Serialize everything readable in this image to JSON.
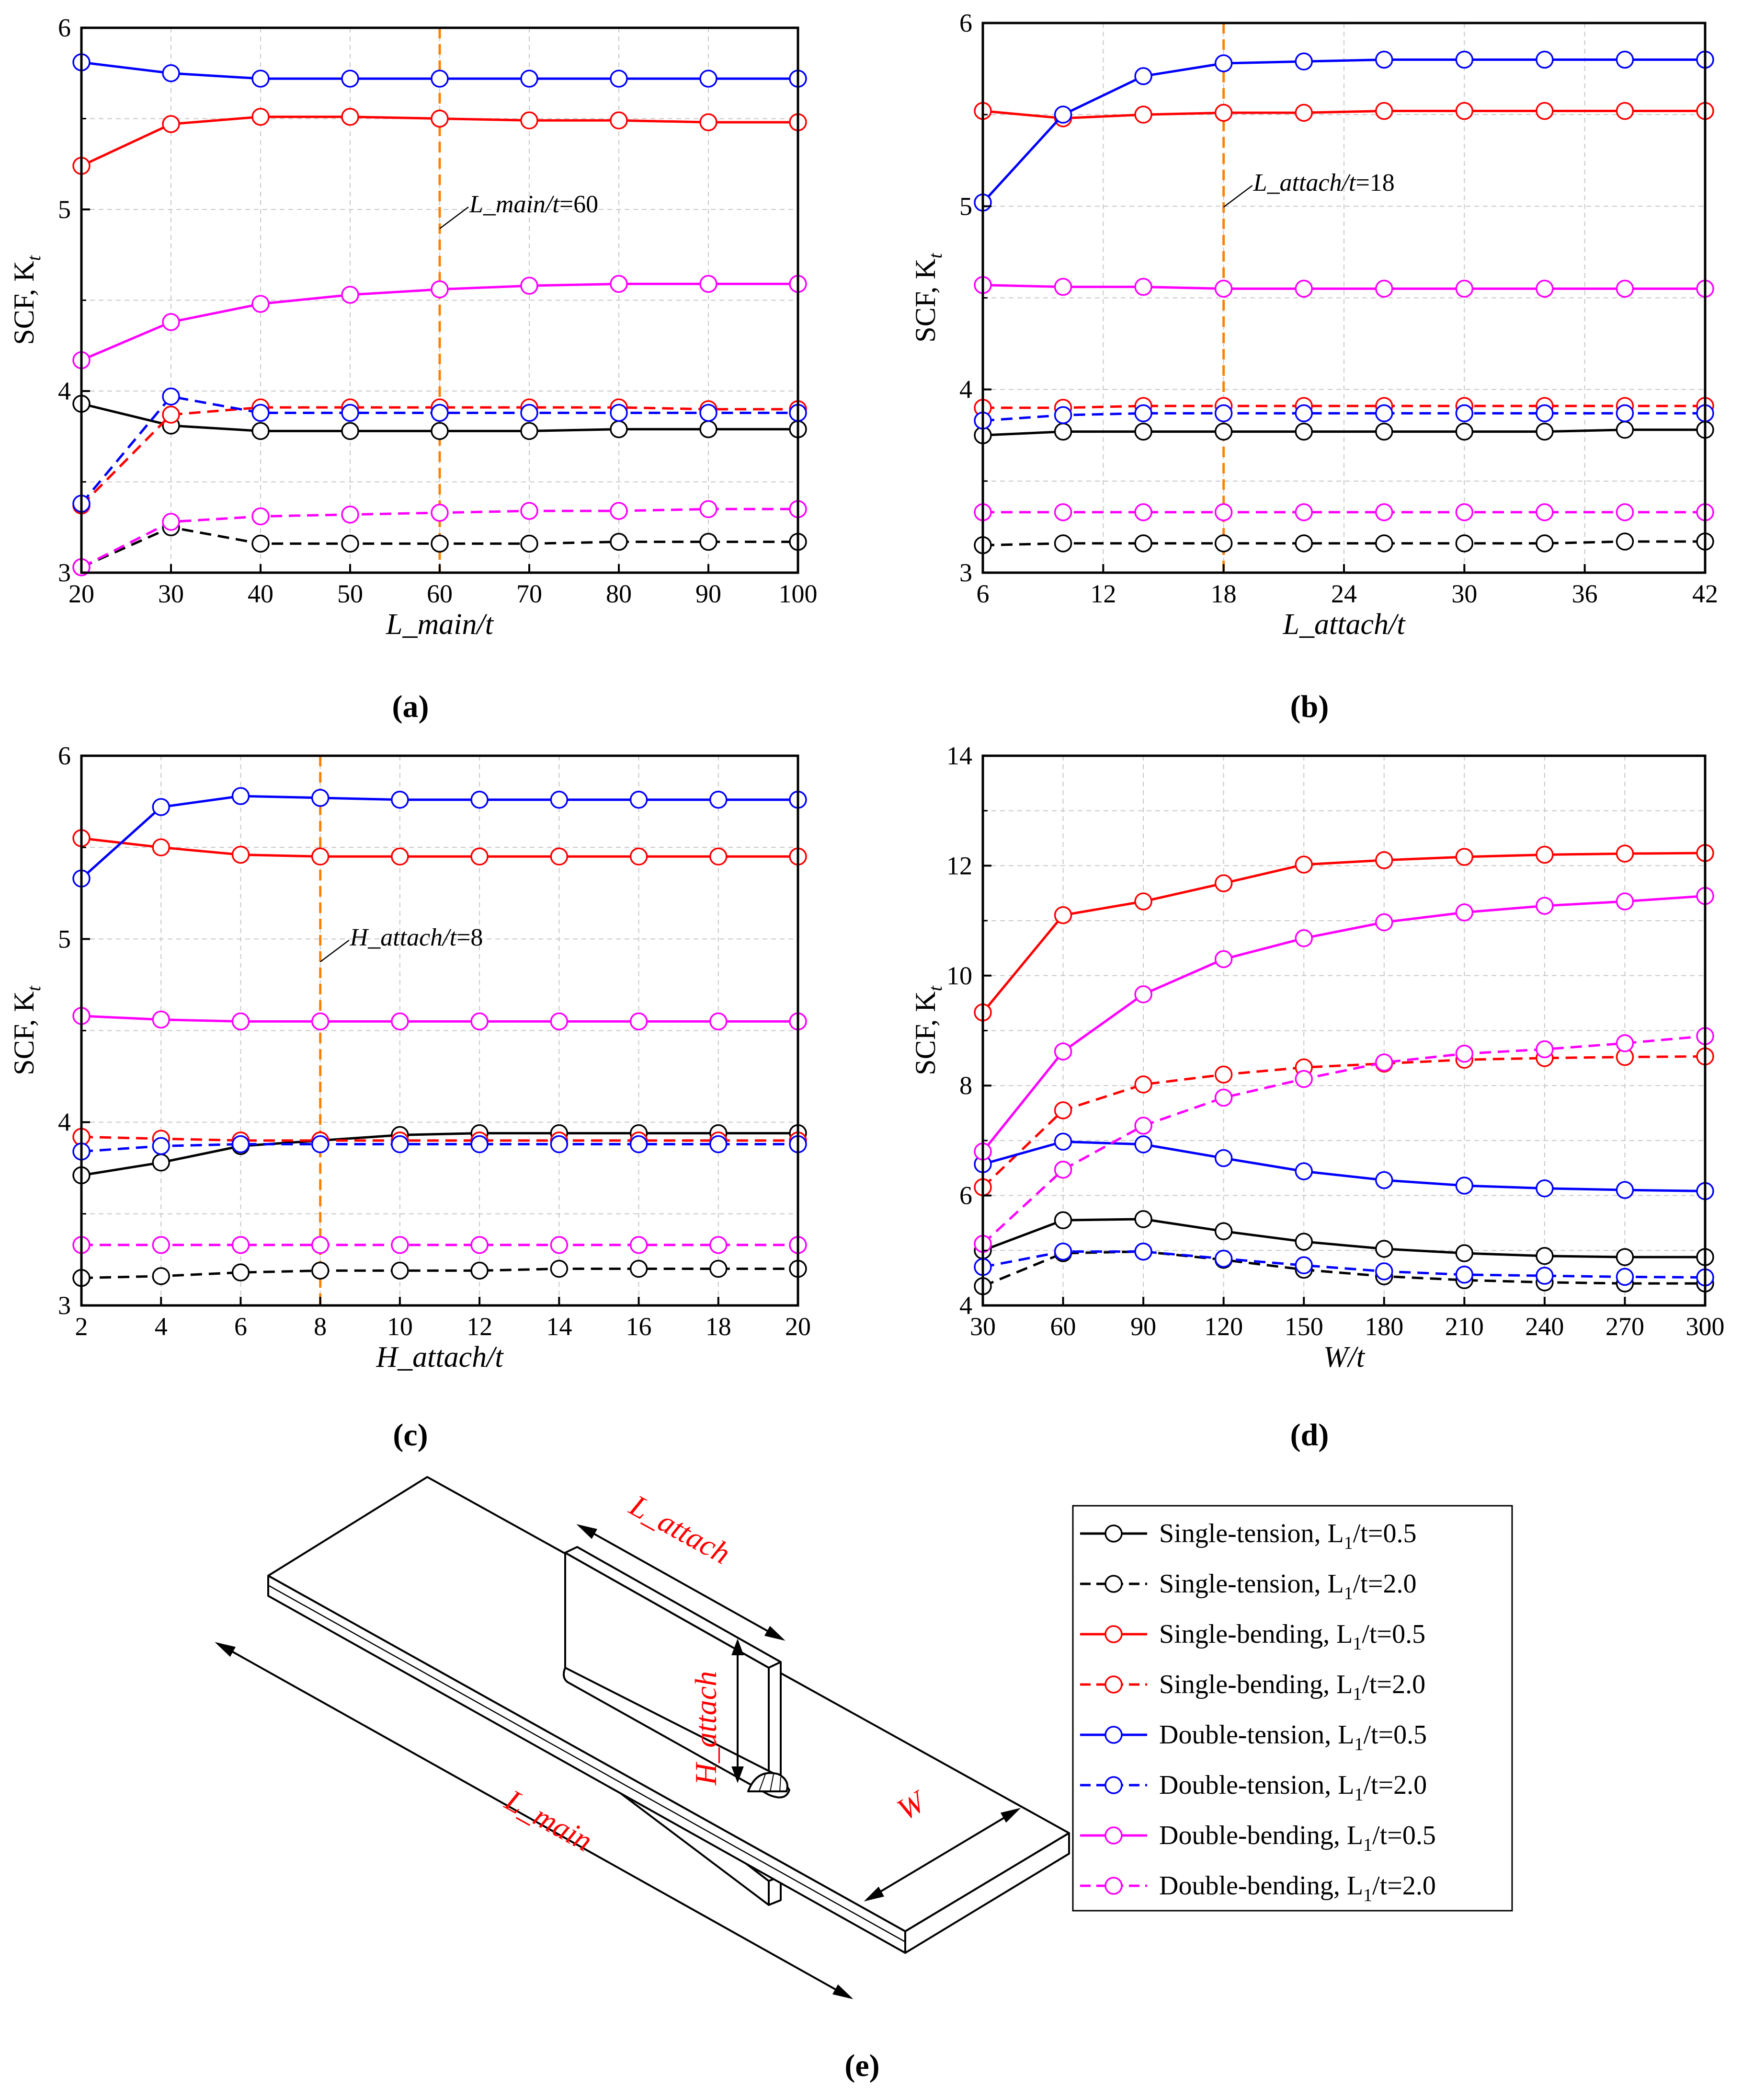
{
  "colors": {
    "single_tension": "#000000",
    "single_bending": "#ff0000",
    "double_tension": "#0000ff",
    "double_bending": "#ff00ff",
    "reference_line": "#ff8000",
    "dimension_label": "#ff0000"
  },
  "series_meta": [
    {
      "key": "st05",
      "color": "#000000",
      "dash": false
    },
    {
      "key": "st20",
      "color": "#000000",
      "dash": true
    },
    {
      "key": "sb05",
      "color": "#ff0000",
      "dash": false
    },
    {
      "key": "sb20",
      "color": "#ff0000",
      "dash": true
    },
    {
      "key": "dt05",
      "color": "#0000ff",
      "dash": false
    },
    {
      "key": "dt20",
      "color": "#0000ff",
      "dash": true
    },
    {
      "key": "db05",
      "color": "#ff00ff",
      "dash": false
    },
    {
      "key": "db20",
      "color": "#ff00ff",
      "dash": true
    }
  ],
  "chart_data": [
    {
      "id": "a",
      "type": "line",
      "panel_label": "(a)",
      "xlabel": "L_main/t",
      "ylabel": "SCF, K",
      "ylabel_sub": "t",
      "xlim": [
        20,
        100
      ],
      "ylim": [
        3,
        6
      ],
      "xticks": [
        20,
        30,
        40,
        50,
        60,
        70,
        80,
        90,
        100
      ],
      "yticks": [
        3,
        4,
        5,
        6
      ],
      "x": [
        20,
        30,
        40,
        50,
        60,
        70,
        80,
        90,
        100
      ],
      "reference": {
        "x": 60,
        "label": "L_main/t",
        "value": "=60",
        "label_y": 5.0
      },
      "series": [
        {
          "name": "Single-tension, L1/t=0.5",
          "values": [
            3.93,
            3.81,
            3.78,
            3.78,
            3.78,
            3.78,
            3.79,
            3.79,
            3.79
          ]
        },
        {
          "name": "Single-tension, L1/t=2.0",
          "values": [
            3.03,
            3.25,
            3.16,
            3.16,
            3.16,
            3.16,
            3.17,
            3.17,
            3.17
          ]
        },
        {
          "name": "Single-bending, L1/t=0.5",
          "values": [
            5.24,
            5.47,
            5.51,
            5.51,
            5.5,
            5.49,
            5.49,
            5.48,
            5.48
          ]
        },
        {
          "name": "Single-bending, L1/t=2.0",
          "values": [
            3.37,
            3.87,
            3.91,
            3.91,
            3.91,
            3.91,
            3.91,
            3.9,
            3.9
          ]
        },
        {
          "name": "Double-tension, L1/t=0.5",
          "values": [
            5.81,
            5.75,
            5.72,
            5.72,
            5.72,
            5.72,
            5.72,
            5.72,
            5.72
          ]
        },
        {
          "name": "Double-tension, L1/t=2.0",
          "values": [
            3.38,
            3.97,
            3.88,
            3.88,
            3.88,
            3.88,
            3.88,
            3.88,
            3.88
          ]
        },
        {
          "name": "Double-bending, L1/t=0.5",
          "values": [
            4.17,
            4.38,
            4.48,
            4.53,
            4.56,
            4.58,
            4.59,
            4.59,
            4.59
          ]
        },
        {
          "name": "Double-bending, L1/t=2.0",
          "values": [
            3.03,
            3.28,
            3.31,
            3.32,
            3.33,
            3.34,
            3.34,
            3.35,
            3.35
          ]
        }
      ]
    },
    {
      "id": "b",
      "type": "line",
      "panel_label": "(b)",
      "xlabel": "L_attach/t",
      "ylabel": "SCF, K",
      "ylabel_sub": "t",
      "xlim": [
        6,
        42
      ],
      "ylim": [
        3,
        6
      ],
      "xticks": [
        6,
        12,
        18,
        24,
        30,
        36,
        42
      ],
      "yticks": [
        3,
        4,
        5,
        6
      ],
      "x": [
        6,
        10,
        14,
        18,
        22,
        26,
        30,
        34,
        38,
        42
      ],
      "reference": {
        "x": 18,
        "label": "L_attach/t",
        "value": "=18",
        "label_y": 5.1
      },
      "series": [
        {
          "name": "Single-tension, L1/t=0.5",
          "values": [
            3.75,
            3.77,
            3.77,
            3.77,
            3.77,
            3.77,
            3.77,
            3.77,
            3.78,
            3.78
          ]
        },
        {
          "name": "Single-tension, L1/t=2.0",
          "values": [
            3.15,
            3.16,
            3.16,
            3.16,
            3.16,
            3.16,
            3.16,
            3.16,
            3.17,
            3.17
          ]
        },
        {
          "name": "Single-bending, L1/t=0.5",
          "values": [
            5.52,
            5.48,
            5.5,
            5.51,
            5.51,
            5.52,
            5.52,
            5.52,
            5.52,
            5.52
          ]
        },
        {
          "name": "Single-bending, L1/t=2.0",
          "values": [
            3.9,
            3.9,
            3.91,
            3.91,
            3.91,
            3.91,
            3.91,
            3.91,
            3.91,
            3.91
          ]
        },
        {
          "name": "Double-tension, L1/t=0.5",
          "values": [
            5.02,
            5.5,
            5.71,
            5.78,
            5.79,
            5.8,
            5.8,
            5.8,
            5.8,
            5.8
          ]
        },
        {
          "name": "Double-tension, L1/t=2.0",
          "values": [
            3.83,
            3.86,
            3.87,
            3.87,
            3.87,
            3.87,
            3.87,
            3.87,
            3.87,
            3.87
          ]
        },
        {
          "name": "Double-bending, L1/t=0.5",
          "values": [
            4.57,
            4.56,
            4.56,
            4.55,
            4.55,
            4.55,
            4.55,
            4.55,
            4.55,
            4.55
          ]
        },
        {
          "name": "Double-bending, L1/t=2.0",
          "values": [
            3.33,
            3.33,
            3.33,
            3.33,
            3.33,
            3.33,
            3.33,
            3.33,
            3.33,
            3.33
          ]
        }
      ]
    },
    {
      "id": "c",
      "type": "line",
      "panel_label": "(c)",
      "xlabel": "H_attach/t",
      "ylabel": "SCF, K",
      "ylabel_sub": "t",
      "xlim": [
        2,
        20
      ],
      "ylim": [
        3,
        6
      ],
      "xticks": [
        2,
        4,
        6,
        8,
        10,
        12,
        14,
        16,
        18,
        20
      ],
      "yticks": [
        3,
        4,
        5,
        6
      ],
      "x": [
        2,
        4,
        6,
        8,
        10,
        12,
        14,
        16,
        18,
        20
      ],
      "reference": {
        "x": 8,
        "label": "H_attach/t",
        "value": "=8",
        "label_y": 4.98
      },
      "series": [
        {
          "name": "Single-tension, L1/t=0.5",
          "values": [
            3.71,
            3.78,
            3.87,
            3.9,
            3.93,
            3.94,
            3.94,
            3.94,
            3.94,
            3.94
          ]
        },
        {
          "name": "Single-tension, L1/t=2.0",
          "values": [
            3.15,
            3.16,
            3.18,
            3.19,
            3.19,
            3.19,
            3.2,
            3.2,
            3.2,
            3.2
          ]
        },
        {
          "name": "Single-bending, L1/t=0.5",
          "values": [
            5.55,
            5.5,
            5.46,
            5.45,
            5.45,
            5.45,
            5.45,
            5.45,
            5.45,
            5.45
          ]
        },
        {
          "name": "Single-bending, L1/t=2.0",
          "values": [
            3.92,
            3.91,
            3.9,
            3.9,
            3.9,
            3.9,
            3.9,
            3.9,
            3.9,
            3.9
          ]
        },
        {
          "name": "Double-tension, L1/t=0.5",
          "values": [
            5.33,
            5.72,
            5.78,
            5.77,
            5.76,
            5.76,
            5.76,
            5.76,
            5.76,
            5.76
          ]
        },
        {
          "name": "Double-tension, L1/t=2.0",
          "values": [
            3.84,
            3.87,
            3.88,
            3.88,
            3.88,
            3.88,
            3.88,
            3.88,
            3.88,
            3.88
          ]
        },
        {
          "name": "Double-bending, L1/t=0.5",
          "values": [
            4.58,
            4.56,
            4.55,
            4.55,
            4.55,
            4.55,
            4.55,
            4.55,
            4.55,
            4.55
          ]
        },
        {
          "name": "Double-bending, L1/t=2.0",
          "values": [
            3.33,
            3.33,
            3.33,
            3.33,
            3.33,
            3.33,
            3.33,
            3.33,
            3.33,
            3.33
          ]
        }
      ]
    },
    {
      "id": "d",
      "type": "line",
      "panel_label": "(d)",
      "xlabel": "W/t",
      "ylabel": "SCF, K",
      "ylabel_sub": "t",
      "xlim": [
        30,
        300
      ],
      "ylim": [
        4,
        14
      ],
      "xticks": [
        30,
        60,
        90,
        120,
        150,
        180,
        210,
        240,
        270,
        300
      ],
      "yticks": [
        4,
        6,
        8,
        10,
        12,
        14
      ],
      "x": [
        30,
        60,
        90,
        120,
        150,
        180,
        210,
        240,
        270,
        300
      ],
      "series": [
        {
          "name": "Single-tension, L1/t=0.5",
          "values": [
            5.0,
            5.55,
            5.57,
            5.35,
            5.16,
            5.03,
            4.95,
            4.9,
            4.88,
            4.88
          ]
        },
        {
          "name": "Single-tension, L1/t=2.0",
          "values": [
            4.35,
            4.95,
            4.98,
            4.83,
            4.65,
            4.53,
            4.46,
            4.42,
            4.4,
            4.4
          ]
        },
        {
          "name": "Single-bending, L1/t=0.5",
          "values": [
            9.33,
            11.1,
            11.35,
            11.68,
            12.02,
            12.1,
            12.16,
            12.2,
            12.22,
            12.23
          ]
        },
        {
          "name": "Single-bending, L1/t=2.0",
          "values": [
            6.15,
            7.55,
            8.02,
            8.2,
            8.33,
            8.4,
            8.47,
            8.5,
            8.52,
            8.53
          ]
        },
        {
          "name": "Double-tension, L1/t=0.5",
          "values": [
            6.57,
            6.98,
            6.93,
            6.68,
            6.44,
            6.28,
            6.18,
            6.13,
            6.1,
            6.08
          ]
        },
        {
          "name": "Double-tension, L1/t=2.0",
          "values": [
            4.7,
            4.98,
            4.98,
            4.85,
            4.73,
            4.62,
            4.56,
            4.54,
            4.52,
            4.51
          ]
        },
        {
          "name": "Double-bending, L1/t=0.5",
          "values": [
            6.8,
            8.62,
            9.66,
            10.3,
            10.68,
            10.97,
            11.15,
            11.27,
            11.35,
            11.45
          ]
        },
        {
          "name": "Double-bending, L1/t=2.0",
          "values": [
            5.12,
            6.47,
            7.27,
            7.78,
            8.12,
            8.42,
            8.58,
            8.66,
            8.77,
            8.9
          ]
        }
      ]
    }
  ],
  "diagram": {
    "panel_label": "(e)",
    "dimensions": {
      "l_attach": "L_attach",
      "h_attach": "H_attach",
      "l_main": "L_main",
      "w": "W"
    }
  },
  "legend": {
    "entries": [
      {
        "text": "Single-tension, L",
        "sub": "1",
        "tail": "/t=0.5"
      },
      {
        "text": "Single-tension, L",
        "sub": "1",
        "tail": "/t=2.0"
      },
      {
        "text": "Single-bending, L",
        "sub": "1",
        "tail": "/t=0.5"
      },
      {
        "text": "Single-bending, L",
        "sub": "1",
        "tail": "/t=2.0"
      },
      {
        "text": "Double-tension, L",
        "sub": "1",
        "tail": "/t=0.5"
      },
      {
        "text": "Double-tension, L",
        "sub": "1",
        "tail": "/t=2.0"
      },
      {
        "text": "Double-bending, L",
        "sub": "1",
        "tail": "/t=0.5"
      },
      {
        "text": "Double-bending, L",
        "sub": "1",
        "tail": "/t=2.0"
      }
    ]
  }
}
